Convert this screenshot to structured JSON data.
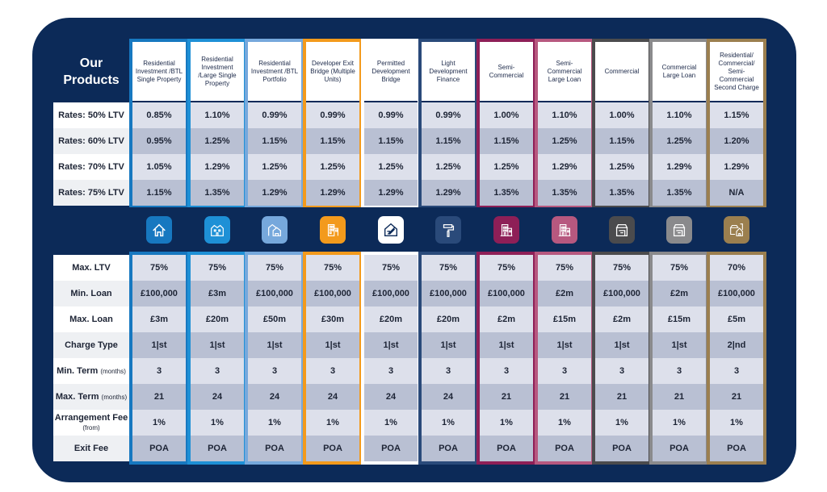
{
  "title_line1": "Our",
  "title_line2": "Products",
  "rate_labels": [
    "Rates: 50% LTV",
    "Rates: 60% LTV",
    "Rates: 70% LTV",
    "Rates: 75% LTV"
  ],
  "detail_labels": [
    {
      "main": "Max. LTV",
      "sub": ""
    },
    {
      "main": "Min. Loan",
      "sub": ""
    },
    {
      "main": "Max. Loan",
      "sub": ""
    },
    {
      "main": "Charge Type",
      "sub": ""
    },
    {
      "main": "Min. Term",
      "sub": "(months)"
    },
    {
      "main": "Max. Term",
      "sub": "(months)"
    },
    {
      "main": "Arrangement Fee",
      "sub": "(from)"
    },
    {
      "main": "Exit Fee",
      "sub": ""
    }
  ],
  "products": [
    {
      "name": "Residential Investment /BTL Single Property",
      "color": "#1778c0",
      "icon": "house-icon",
      "rates": [
        "0.85%",
        "0.95%",
        "1.05%",
        "1.15%"
      ],
      "details": [
        "75%",
        "£100,000",
        "£3m",
        "1|st",
        "3",
        "21",
        "1%",
        "POA"
      ]
    },
    {
      "name": "Residential Investment /Large Single Property",
      "color": "#1e90d6",
      "icon": "large-house-icon",
      "rates": [
        "1.10%",
        "1.25%",
        "1.29%",
        "1.35%"
      ],
      "details": [
        "75%",
        "£3m",
        "£20m",
        "1|st",
        "3",
        "24",
        "1%",
        "POA"
      ]
    },
    {
      "name": "Residential Investment /BTL Portfolio",
      "color": "#76a8dc",
      "icon": "portfolio-houses-icon",
      "rates": [
        "0.99%",
        "1.15%",
        "1.25%",
        "1.29%"
      ],
      "details": [
        "75%",
        "£100,000",
        "£50m",
        "1|st",
        "3",
        "24",
        "1%",
        "POA"
      ]
    },
    {
      "name": "Developer Exit Bridge (Multiple Units)",
      "color": "#f39a1c",
      "icon": "apartment-block-icon",
      "rates": [
        "0.99%",
        "1.15%",
        "1.25%",
        "1.29%"
      ],
      "details": [
        "75%",
        "£100,000",
        "£30m",
        "1|st",
        "3",
        "24",
        "1%",
        "POA"
      ]
    },
    {
      "name": "Permitted Development Bridge",
      "color": "#ffffff",
      "icon": "house-plan-icon",
      "rates": [
        "0.99%",
        "1.15%",
        "1.25%",
        "1.29%"
      ],
      "details": [
        "75%",
        "£100,000",
        "£20m",
        "1|st",
        "3",
        "24",
        "1%",
        "POA"
      ]
    },
    {
      "name": "Light Development Finance",
      "color": "#2a4a7a",
      "icon": "paint-roller-icon",
      "rates": [
        "0.99%",
        "1.15%",
        "1.25%",
        "1.29%"
      ],
      "details": [
        "75%",
        "£100,000",
        "£20m",
        "1|st",
        "3",
        "24",
        "1%",
        "POA"
      ]
    },
    {
      "name": "Semi-Commercial",
      "color": "#8e1f57",
      "icon": "mixed-building-icon",
      "rates": [
        "1.00%",
        "1.15%",
        "1.25%",
        "1.35%"
      ],
      "details": [
        "75%",
        "£100,000",
        "£2m",
        "1|st",
        "3",
        "21",
        "1%",
        "POA"
      ]
    },
    {
      "name": "Semi-Commercial Large Loan",
      "color": "#b7587f",
      "icon": "mixed-building-icon",
      "rates": [
        "1.10%",
        "1.25%",
        "1.29%",
        "1.35%"
      ],
      "details": [
        "75%",
        "£2m",
        "£15m",
        "1|st",
        "3",
        "21",
        "1%",
        "POA"
      ]
    },
    {
      "name": "Commercial",
      "color": "#4b4b4d",
      "icon": "shop-icon",
      "rates": [
        "1.00%",
        "1.15%",
        "1.25%",
        "1.35%"
      ],
      "details": [
        "75%",
        "£100,000",
        "£2m",
        "1|st",
        "3",
        "21",
        "1%",
        "POA"
      ]
    },
    {
      "name": "Commercial Large Loan",
      "color": "#8a8a8c",
      "icon": "shop-icon",
      "rates": [
        "1.10%",
        "1.25%",
        "1.29%",
        "1.35%"
      ],
      "details": [
        "75%",
        "£2m",
        "£15m",
        "1|st",
        "3",
        "21",
        "1%",
        "POA"
      ]
    },
    {
      "name": "Residential/ Commercial/ Semi-Commercial Second Charge",
      "color": "#9b7f4f",
      "icon": "shop-and-house-icon",
      "rates": [
        "1.15%",
        "1.20%",
        "1.29%",
        "N/A"
      ],
      "details": [
        "70%",
        "£100,000",
        "£5m",
        "2|nd",
        "3",
        "21",
        "1%",
        "POA"
      ]
    }
  ]
}
